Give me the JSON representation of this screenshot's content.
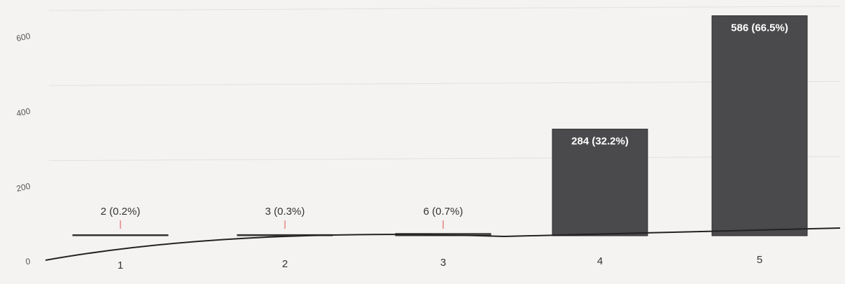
{
  "chart_data": {
    "type": "bar",
    "categories": [
      "1",
      "2",
      "3",
      "4",
      "5"
    ],
    "values": [
      2,
      3,
      6,
      284,
      586
    ],
    "data_labels": [
      "2 (0.2%)",
      "3 (0.3%)",
      "6 (0.7%)",
      "284 (32.2%)",
      "586 (66.5%)"
    ],
    "yticks": [
      0,
      200,
      400,
      600
    ],
    "ylim": [
      0,
      600
    ],
    "title": "",
    "xlabel": "",
    "ylabel": "",
    "grid": true,
    "colors": {
      "bar": "#4a4a4c",
      "bar_edge": "#2a2a2a",
      "label_outside": "#333333",
      "label_inside": "#ffffff",
      "grid": "#e3e1de",
      "axis": "#222222"
    }
  }
}
